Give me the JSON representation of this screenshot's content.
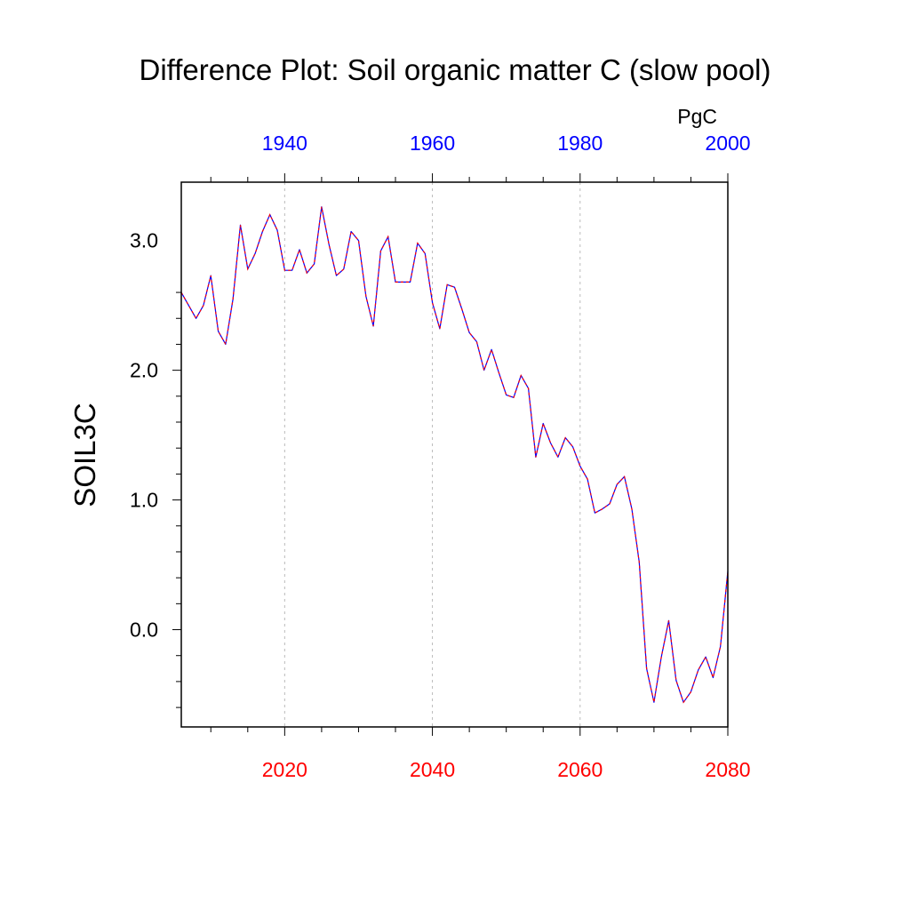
{
  "chart_data": {
    "type": "line",
    "title": "Difference Plot: Soil organic matter C (slow pool)",
    "ylabel": "SOIL3C",
    "units": "PgC",
    "grid": "vertical dashed at bottom-axis major ticks",
    "x_bottom": {
      "ticks": [
        2020,
        2040,
        2060,
        2080
      ],
      "range": [
        2006,
        2080
      ],
      "color": "#ff0000"
    },
    "x_top": {
      "ticks": [
        1940,
        1960,
        1980,
        2000
      ],
      "range": [
        1926,
        2000
      ],
      "color": "#0000ff"
    },
    "yaxis": {
      "ticks": [
        0.0,
        1.0,
        2.0,
        3.0
      ],
      "tick_labels": [
        "0.0",
        "1.0",
        "2.0",
        "3.0"
      ],
      "range": [
        -0.75,
        3.45
      ]
    },
    "series": [
      {
        "color_solid": "#0000ff",
        "color_dash": "#ff0000",
        "x": [
          2006,
          2007,
          2008,
          2009,
          2010,
          2011,
          2012,
          2013,
          2014,
          2015,
          2016,
          2017,
          2018,
          2019,
          2020,
          2021,
          2022,
          2023,
          2024,
          2025,
          2026,
          2027,
          2028,
          2029,
          2030,
          2031,
          2032,
          2033,
          2034,
          2035,
          2036,
          2037,
          2038,
          2039,
          2040,
          2041,
          2042,
          2043,
          2044,
          2045,
          2046,
          2047,
          2048,
          2049,
          2050,
          2051,
          2052,
          2053,
          2054,
          2055,
          2056,
          2057,
          2058,
          2059,
          2060,
          2061,
          2062,
          2063,
          2064,
          2065,
          2066,
          2067,
          2068,
          2069,
          2070,
          2071,
          2072,
          2073,
          2074,
          2075,
          2076,
          2077,
          2078,
          2079,
          2080
        ],
        "values": [
          2.6,
          2.5,
          2.4,
          2.5,
          2.73,
          2.3,
          2.2,
          2.55,
          3.12,
          2.78,
          2.9,
          3.07,
          3.2,
          3.08,
          2.77,
          2.77,
          2.93,
          2.75,
          2.82,
          3.26,
          2.97,
          2.73,
          2.78,
          3.07,
          3.0,
          2.57,
          2.34,
          2.92,
          3.03,
          2.68,
          2.68,
          2.68,
          2.98,
          2.9,
          2.52,
          2.32,
          2.66,
          2.64,
          2.47,
          2.29,
          2.22,
          2.0,
          2.16,
          1.98,
          1.81,
          1.79,
          1.96,
          1.86,
          1.33,
          1.59,
          1.44,
          1.33,
          1.48,
          1.41,
          1.26,
          1.16,
          0.9,
          0.93,
          0.97,
          1.12,
          1.18,
          0.93,
          0.52,
          -0.3,
          -0.56,
          -0.21,
          0.07,
          -0.39,
          -0.56,
          -0.48,
          -0.31,
          -0.21,
          -0.37,
          -0.13,
          0.45
        ]
      }
    ]
  }
}
